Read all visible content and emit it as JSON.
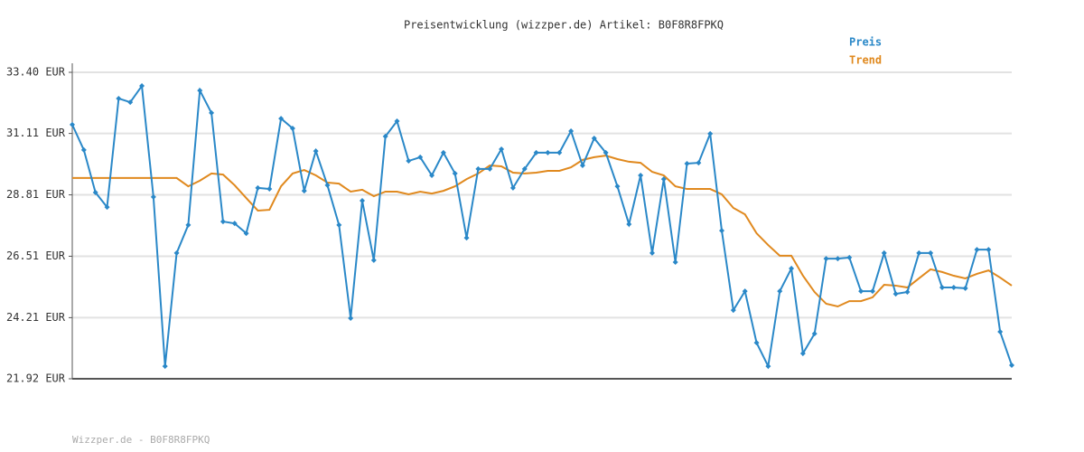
{
  "chart_data": {
    "type": "line",
    "title": "Preisentwicklung (wizzper.de) Artikel: B0F8R8FPKQ",
    "footer": "Wizzper.de - B0F8R8FPKQ",
    "categories": [
      null,
      null,
      null,
      null,
      null,
      null,
      null,
      null,
      null,
      null,
      null,
      null,
      null,
      null,
      null,
      null,
      null,
      null,
      null,
      null,
      null,
      null,
      null,
      null,
      null,
      null,
      null,
      null,
      null,
      null,
      null,
      null,
      null,
      null,
      null,
      null,
      null,
      null,
      null,
      null,
      null,
      null,
      null,
      null,
      null,
      null,
      null,
      null,
      null,
      null,
      null,
      null,
      null,
      null,
      null,
      null,
      null,
      null,
      null,
      null,
      null,
      null,
      null,
      null,
      null,
      null,
      null,
      null,
      null,
      null,
      null,
      null,
      null,
      null,
      null,
      null,
      null,
      null,
      null,
      null,
      null,
      null
    ],
    "series": [
      {
        "name": "Preis",
        "color": "#2a88c8",
        "markers": true,
        "values": [
          31.44,
          30.49,
          28.9,
          28.35,
          32.42,
          32.28,
          32.89,
          28.73,
          22.39,
          26.63,
          27.68,
          32.72,
          31.88,
          27.81,
          27.74,
          27.37,
          29.07,
          29.03,
          31.67,
          31.3,
          28.96,
          30.45,
          29.17,
          27.68,
          24.19,
          28.59,
          26.36,
          31.0,
          31.57,
          30.08,
          30.22,
          29.54,
          30.39,
          29.61,
          27.2,
          29.78,
          29.78,
          30.52,
          29.07,
          29.78,
          30.39,
          30.39,
          30.39,
          31.2,
          29.91,
          30.93,
          30.39,
          29.13,
          27.71,
          29.54,
          26.63,
          29.4,
          26.29,
          29.98,
          30.01,
          31.1,
          27.47,
          24.49,
          25.2,
          23.27,
          22.39,
          25.2,
          26.05,
          22.87,
          23.61,
          26.42,
          26.42,
          26.46,
          25.2,
          25.2,
          26.63,
          25.1,
          25.17,
          26.63,
          26.63,
          25.34,
          25.34,
          25.31,
          26.76,
          26.76,
          23.68,
          22.43
        ]
      },
      {
        "name": "Trend",
        "color": "#e0891e",
        "markers": false,
        "values": [
          29.44,
          29.44,
          29.44,
          29.44,
          29.44,
          29.44,
          29.44,
          29.44,
          29.44,
          29.44,
          29.13,
          29.34,
          29.61,
          29.57,
          29.17,
          28.69,
          28.22,
          28.25,
          29.13,
          29.61,
          29.74,
          29.54,
          29.27,
          29.23,
          28.93,
          29.0,
          28.76,
          28.93,
          28.93,
          28.83,
          28.93,
          28.86,
          28.96,
          29.13,
          29.4,
          29.61,
          29.91,
          29.88,
          29.64,
          29.61,
          29.64,
          29.71,
          29.71,
          29.84,
          30.12,
          30.22,
          30.28,
          30.15,
          30.05,
          30.01,
          29.67,
          29.54,
          29.13,
          29.03,
          29.03,
          29.03,
          28.83,
          28.32,
          28.08,
          27.37,
          26.93,
          26.53,
          26.53,
          25.78,
          25.17,
          24.73,
          24.63,
          24.83,
          24.83,
          24.97,
          25.44,
          25.41,
          25.34,
          25.68,
          26.02,
          25.92,
          25.78,
          25.68,
          25.85,
          25.98,
          25.71,
          25.41
        ]
      }
    ],
    "ylim": [
      21.92,
      33.4
    ],
    "yticks": [
      {
        "value": 21.92,
        "label": "21.92 EUR"
      },
      {
        "value": 24.21,
        "label": "24.21 EUR"
      },
      {
        "value": 26.51,
        "label": "26.51 EUR"
      },
      {
        "value": 28.81,
        "label": "28.81 EUR"
      },
      {
        "value": 31.11,
        "label": "31.11 EUR"
      },
      {
        "value": 33.4,
        "label": "33.40 EUR"
      }
    ],
    "grid": true
  }
}
